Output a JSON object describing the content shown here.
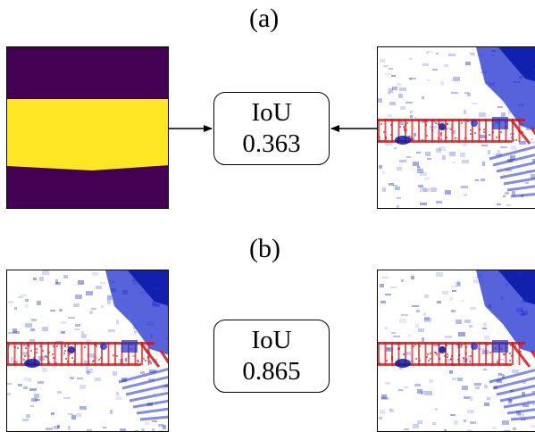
{
  "panels": [
    {
      "label": "(a)",
      "iou_title": "IoU",
      "iou_value": "0.363"
    },
    {
      "label": "(b)",
      "iou_title": "IoU",
      "iou_value": "0.865"
    }
  ],
  "colors": {
    "mask_background": "#440154",
    "mask_foreground": "#fde725",
    "heatmap_low": "#1f2fcf",
    "heatmap_high": "#e01010"
  },
  "icons": {
    "arrow_left": "arrow-right-icon",
    "arrow_right": "arrow-left-icon"
  }
}
